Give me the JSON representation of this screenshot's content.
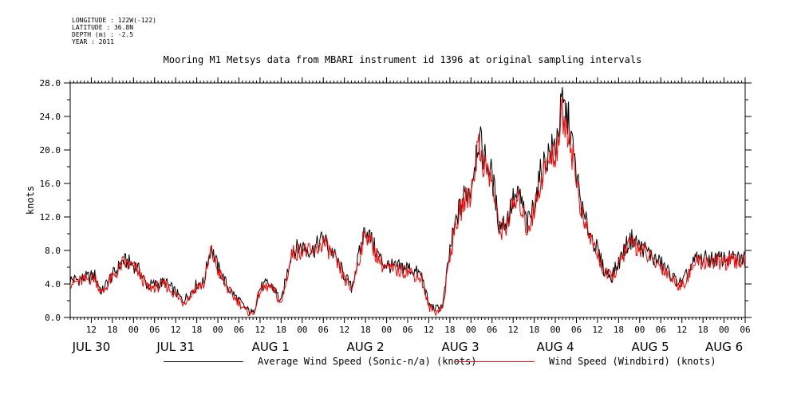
{
  "header": {
    "longitude": "LONGITUDE : 122W(-122)",
    "latitude": "LATITUDE : 36.8N",
    "depth": "DEPTH (m) : -2.5",
    "year": "YEAR : 2011"
  },
  "chart_data": {
    "type": "line",
    "title": "Mooring M1 Metsys data from MBARI instrument id 1396 at original sampling intervals",
    "ylabel": "knots",
    "xlabel": "",
    "ylim": [
      0,
      28
    ],
    "yticks": [
      "0.0",
      "4.0",
      "8.0",
      "12.0",
      "16.0",
      "20.0",
      "24.0",
      "28.0"
    ],
    "xlim_hours": [
      0,
      192
    ],
    "time_start": "2011-07-29 06:00",
    "hour_ticks": [
      {
        "h": 6,
        "label": "12"
      },
      {
        "h": 12,
        "label": "18"
      },
      {
        "h": 18,
        "label": "00"
      },
      {
        "h": 24,
        "label": "06"
      },
      {
        "h": 30,
        "label": "12"
      },
      {
        "h": 36,
        "label": "18"
      },
      {
        "h": 42,
        "label": "00"
      },
      {
        "h": 48,
        "label": "06"
      },
      {
        "h": 54,
        "label": "12"
      },
      {
        "h": 60,
        "label": "18"
      },
      {
        "h": 66,
        "label": "00"
      },
      {
        "h": 72,
        "label": "06"
      },
      {
        "h": 78,
        "label": "12"
      },
      {
        "h": 84,
        "label": "18"
      },
      {
        "h": 90,
        "label": "00"
      },
      {
        "h": 96,
        "label": "06"
      },
      {
        "h": 102,
        "label": "12"
      },
      {
        "h": 108,
        "label": "18"
      },
      {
        "h": 114,
        "label": "00"
      },
      {
        "h": 120,
        "label": "06"
      },
      {
        "h": 126,
        "label": "12"
      },
      {
        "h": 132,
        "label": "18"
      },
      {
        "h": 138,
        "label": "00"
      },
      {
        "h": 144,
        "label": "06"
      },
      {
        "h": 150,
        "label": "12"
      },
      {
        "h": 156,
        "label": "18"
      },
      {
        "h": 162,
        "label": "00"
      },
      {
        "h": 168,
        "label": "06"
      },
      {
        "h": 174,
        "label": "12"
      },
      {
        "h": 180,
        "label": "18"
      },
      {
        "h": 186,
        "label": "00"
      },
      {
        "h": 192,
        "label": "06"
      }
    ],
    "day_labels": [
      {
        "h": 6,
        "label": "JUL 30"
      },
      {
        "h": 30,
        "label": "JUL 31"
      },
      {
        "h": 57,
        "label": "AUG  1"
      },
      {
        "h": 84,
        "label": "AUG  2"
      },
      {
        "h": 111,
        "label": "AUG  3"
      },
      {
        "h": 138,
        "label": "AUG  4"
      },
      {
        "h": 165,
        "label": "AUG  5"
      },
      {
        "h": 186,
        "label": "AUG  6"
      }
    ],
    "series": [
      {
        "name": "Average Wind Speed (Sonic-n/a) (knots)",
        "color": "#000000",
        "x": [
          0,
          2,
          7,
          9,
          11,
          13,
          15,
          17,
          19,
          22,
          25,
          27,
          30,
          32,
          34,
          36,
          38,
          40,
          42,
          45,
          48,
          50,
          52,
          54,
          56,
          58,
          60,
          63,
          66,
          69,
          72,
          75,
          78,
          80,
          84,
          87,
          89,
          92,
          96,
          98,
          100,
          102,
          104,
          106,
          108,
          110,
          112,
          114,
          116,
          118,
          120,
          122,
          124,
          126,
          128,
          130,
          132,
          134,
          136,
          138,
          140,
          142,
          144,
          146,
          148,
          150,
          152,
          154,
          156,
          158,
          160,
          162,
          164,
          166,
          168,
          170,
          172,
          174,
          176,
          178,
          180,
          183,
          186,
          189,
          192
        ],
        "y": [
          4.5,
          4.5,
          5.0,
          3.0,
          4.5,
          5.5,
          6.8,
          6.5,
          6.0,
          3.8,
          4.0,
          4.2,
          3.0,
          2.0,
          2.8,
          4.0,
          4.2,
          8.5,
          6.0,
          3.5,
          2.0,
          1.0,
          0.5,
          3.5,
          4.0,
          3.5,
          1.8,
          8.0,
          8.5,
          8.0,
          9.5,
          7.5,
          5.0,
          3.5,
          10.8,
          8.0,
          6.5,
          6.0,
          6.0,
          5.5,
          5.0,
          1.5,
          1.0,
          1.5,
          8.0,
          12.0,
          14.5,
          15.5,
          21.5,
          19.0,
          17.0,
          11.0,
          11.5,
          14.0,
          14.5,
          11.0,
          13.5,
          17.5,
          19.5,
          20.5,
          25.5,
          23.0,
          17.0,
          12.0,
          10.0,
          8.0,
          5.5,
          5.0,
          6.5,
          8.5,
          9.5,
          8.5,
          8.0,
          7.0,
          6.5,
          5.5,
          4.5,
          4.0,
          5.5,
          7.0,
          7.0,
          7.0,
          7.0,
          7.0,
          7.0
        ]
      },
      {
        "name": "Wind Speed (Windbird) (knots)",
        "color": "#ff0000",
        "x": [
          0,
          2,
          7,
          9,
          11,
          13,
          15,
          17,
          19,
          22,
          25,
          27,
          30,
          32,
          34,
          36,
          38,
          40,
          42,
          45,
          48,
          50,
          52,
          54,
          56,
          58,
          60,
          63,
          66,
          69,
          72,
          75,
          78,
          80,
          84,
          87,
          89,
          92,
          96,
          98,
          100,
          102,
          104,
          106,
          108,
          110,
          112,
          114,
          116,
          118,
          120,
          122,
          124,
          126,
          128,
          130,
          132,
          134,
          136,
          138,
          140,
          142,
          144,
          146,
          148,
          150,
          152,
          154,
          156,
          158,
          160,
          162,
          164,
          166,
          168,
          170,
          172,
          174,
          176,
          178,
          180,
          183,
          186,
          189,
          192
        ],
        "y": [
          4.2,
          4.2,
          4.8,
          2.8,
          4.2,
          5.2,
          6.5,
          6.2,
          5.7,
          3.5,
          3.7,
          3.9,
          2.7,
          1.8,
          2.5,
          3.7,
          3.9,
          8.0,
          5.6,
          3.2,
          1.8,
          0.8,
          0.3,
          3.2,
          3.7,
          3.2,
          1.5,
          7.6,
          8.1,
          7.6,
          9.0,
          7.1,
          4.6,
          3.2,
          10.3,
          7.6,
          6.1,
          5.6,
          5.6,
          5.1,
          4.6,
          1.2,
          0.7,
          1.2,
          7.5,
          11.4,
          13.8,
          14.8,
          20.5,
          18.0,
          16.2,
          10.4,
          10.9,
          13.4,
          13.8,
          10.4,
          12.8,
          16.6,
          18.5,
          19.5,
          24.2,
          21.9,
          16.2,
          11.4,
          9.5,
          7.6,
          5.2,
          4.7,
          6.2,
          8.1,
          9.0,
          8.1,
          7.6,
          6.6,
          6.2,
          5.2,
          4.2,
          3.8,
          5.2,
          6.6,
          6.6,
          6.6,
          6.6,
          6.6,
          6.6
        ]
      }
    ]
  }
}
